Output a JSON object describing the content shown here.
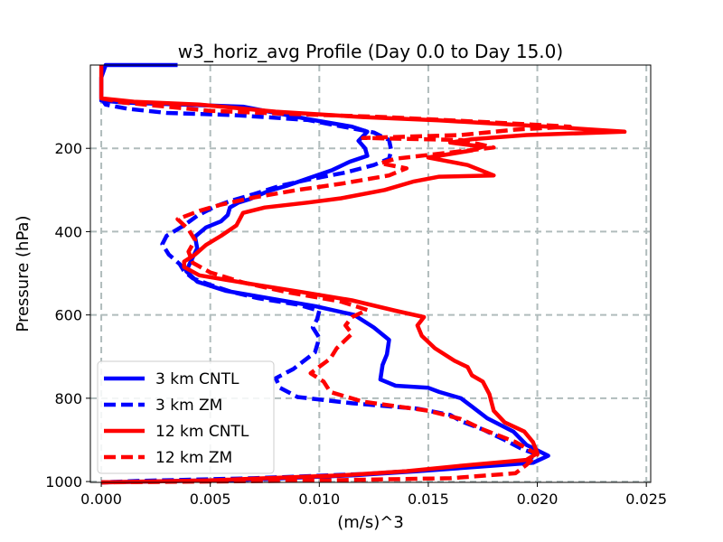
{
  "chart_data": {
    "type": "line",
    "title": "w3_horiz_avg Profile (Day 0.0 to Day 15.0)",
    "xlabel": "(m/s)^3",
    "ylabel": "Pressure (hPa)",
    "xlim": [
      -0.0005,
      0.0252
    ],
    "ylim": [
      1002,
      0
    ],
    "y_inverted": true,
    "grid": true,
    "x_ticks": [
      0.0,
      0.005,
      0.01,
      0.015,
      0.02,
      0.025
    ],
    "x_tick_labels": [
      "0.000",
      "0.005",
      "0.010",
      "0.015",
      "0.020",
      "0.025"
    ],
    "y_ticks": [
      200,
      400,
      600,
      800,
      1000
    ],
    "y_tick_labels": [
      "200",
      "400",
      "600",
      "800",
      "1000"
    ],
    "legend_location": "lower-left",
    "series": [
      {
        "name": "3 km CNTL",
        "color": "#0000ff",
        "dash": "solid",
        "points": [
          [
            0.0035,
            0
          ],
          [
            0.0025,
            0
          ],
          [
            0.0002,
            0
          ],
          [
            0.0,
            30
          ],
          [
            0.0,
            70
          ],
          [
            0.0,
            85
          ],
          [
            0.001,
            90
          ],
          [
            0.0037,
            95
          ],
          [
            0.0065,
            100
          ],
          [
            0.0075,
            110
          ],
          [
            0.0095,
            130
          ],
          [
            0.0115,
            148
          ],
          [
            0.0122,
            160
          ],
          [
            0.0118,
            182
          ],
          [
            0.0121,
            200
          ],
          [
            0.0122,
            218
          ],
          [
            0.0114,
            232
          ],
          [
            0.0106,
            252
          ],
          [
            0.0095,
            272
          ],
          [
            0.0085,
            290
          ],
          [
            0.0077,
            302
          ],
          [
            0.0068,
            322
          ],
          [
            0.0063,
            330
          ],
          [
            0.0059,
            342
          ],
          [
            0.0058,
            360
          ],
          [
            0.0055,
            375
          ],
          [
            0.0048,
            390
          ],
          [
            0.0043,
            412
          ],
          [
            0.0044,
            440
          ],
          [
            0.0041,
            472
          ],
          [
            0.0039,
            495
          ],
          [
            0.0044,
            520
          ],
          [
            0.0057,
            542
          ],
          [
            0.0077,
            560
          ],
          [
            0.0099,
            580
          ],
          [
            0.0116,
            600
          ],
          [
            0.0125,
            630
          ],
          [
            0.0132,
            660
          ],
          [
            0.0131,
            695
          ],
          [
            0.0129,
            720
          ],
          [
            0.0128,
            755
          ],
          [
            0.0135,
            770
          ],
          [
            0.015,
            775
          ],
          [
            0.0155,
            785
          ],
          [
            0.0165,
            800
          ],
          [
            0.017,
            820
          ],
          [
            0.0177,
            848
          ],
          [
            0.0189,
            880
          ],
          [
            0.0195,
            912
          ],
          [
            0.0205,
            938
          ],
          [
            0.0198,
            955
          ],
          [
            0.0172,
            965
          ],
          [
            0.0145,
            975
          ],
          [
            0.0115,
            985
          ],
          [
            0.007,
            995
          ],
          [
            0.002,
            1000
          ],
          [
            0.0,
            1002
          ]
        ]
      },
      {
        "name": "3 km ZM",
        "color": "#0000ff",
        "dash": "dashed",
        "points": [
          [
            0.0,
            80
          ],
          [
            0.0002,
            95
          ],
          [
            0.0012,
            105
          ],
          [
            0.003,
            115
          ],
          [
            0.006,
            120
          ],
          [
            0.0075,
            125
          ],
          [
            0.0095,
            132
          ],
          [
            0.0108,
            145
          ],
          [
            0.0125,
            162
          ],
          [
            0.0132,
            180
          ],
          [
            0.0133,
            205
          ],
          [
            0.0132,
            225
          ],
          [
            0.0125,
            240
          ],
          [
            0.0112,
            258
          ],
          [
            0.0095,
            275
          ],
          [
            0.0082,
            290
          ],
          [
            0.007,
            310
          ],
          [
            0.006,
            325
          ],
          [
            0.0052,
            340
          ],
          [
            0.0044,
            362
          ],
          [
            0.0038,
            385
          ],
          [
            0.003,
            410
          ],
          [
            0.0028,
            430
          ],
          [
            0.0031,
            455
          ],
          [
            0.0036,
            478
          ],
          [
            0.0038,
            495
          ],
          [
            0.0042,
            512
          ],
          [
            0.005,
            528
          ],
          [
            0.006,
            545
          ],
          [
            0.0072,
            560
          ],
          [
            0.009,
            575
          ],
          [
            0.01,
            590
          ],
          [
            0.0099,
            610
          ],
          [
            0.0097,
            630
          ],
          [
            0.01,
            655
          ],
          [
            0.0098,
            690
          ],
          [
            0.0088,
            730
          ],
          [
            0.008,
            752
          ],
          [
            0.0082,
            775
          ],
          [
            0.009,
            797
          ],
          [
            0.0115,
            812
          ],
          [
            0.0145,
            825
          ],
          [
            0.016,
            840
          ],
          [
            0.0165,
            855
          ],
          [
            0.0175,
            875
          ],
          [
            0.0185,
            900
          ],
          [
            0.0193,
            922
          ],
          [
            0.02,
            935
          ],
          [
            0.0195,
            950
          ],
          [
            0.0175,
            962
          ],
          [
            0.015,
            972
          ],
          [
            0.012,
            982
          ],
          [
            0.007,
            992
          ],
          [
            0.002,
            998
          ],
          [
            0.0,
            1002
          ]
        ]
      },
      {
        "name": "12 km CNTL",
        "color": "#ff0000",
        "dash": "solid",
        "points": [
          [
            0.0,
            0
          ],
          [
            0.0,
            30
          ],
          [
            0.0,
            70
          ],
          [
            0.0,
            80
          ],
          [
            0.0015,
            88
          ],
          [
            0.0045,
            95
          ],
          [
            0.008,
            112
          ],
          [
            0.012,
            125
          ],
          [
            0.0155,
            133
          ],
          [
            0.0205,
            148
          ],
          [
            0.024,
            160
          ],
          [
            0.0195,
            168
          ],
          [
            0.017,
            178
          ],
          [
            0.016,
            186
          ],
          [
            0.0175,
            196
          ],
          [
            0.017,
            205
          ],
          [
            0.015,
            222
          ],
          [
            0.0168,
            240
          ],
          [
            0.018,
            265
          ],
          [
            0.0155,
            268
          ],
          [
            0.0143,
            280
          ],
          [
            0.013,
            300
          ],
          [
            0.011,
            320
          ],
          [
            0.0095,
            330
          ],
          [
            0.0075,
            342
          ],
          [
            0.0065,
            355
          ],
          [
            0.0062,
            385
          ],
          [
            0.0055,
            410
          ],
          [
            0.0048,
            432
          ],
          [
            0.0043,
            455
          ],
          [
            0.0038,
            472
          ],
          [
            0.0038,
            485
          ],
          [
            0.0045,
            505
          ],
          [
            0.0068,
            525
          ],
          [
            0.0092,
            545
          ],
          [
            0.0115,
            565
          ],
          [
            0.0135,
            590
          ],
          [
            0.0148,
            605
          ],
          [
            0.0145,
            625
          ],
          [
            0.0147,
            650
          ],
          [
            0.0153,
            680
          ],
          [
            0.0162,
            710
          ],
          [
            0.0168,
            725
          ],
          [
            0.017,
            745
          ],
          [
            0.0175,
            760
          ],
          [
            0.0178,
            790
          ],
          [
            0.018,
            830
          ],
          [
            0.0185,
            858
          ],
          [
            0.0194,
            880
          ],
          [
            0.0198,
            905
          ],
          [
            0.02,
            932
          ],
          [
            0.0195,
            948
          ],
          [
            0.0165,
            962
          ],
          [
            0.014,
            975
          ],
          [
            0.011,
            985
          ],
          [
            0.005,
            997
          ],
          [
            0.0,
            1002
          ]
        ]
      },
      {
        "name": "12 km ZM",
        "color": "#ff0000",
        "dash": "dashed",
        "points": [
          [
            0.0,
            80
          ],
          [
            0.001,
            90
          ],
          [
            0.005,
            110
          ],
          [
            0.009,
            118
          ],
          [
            0.013,
            125
          ],
          [
            0.018,
            138
          ],
          [
            0.0215,
            148
          ],
          [
            0.019,
            155
          ],
          [
            0.0165,
            168
          ],
          [
            0.012,
            175
          ],
          [
            0.0165,
            180
          ],
          [
            0.018,
            198
          ],
          [
            0.016,
            210
          ],
          [
            0.0135,
            225
          ],
          [
            0.0128,
            236
          ],
          [
            0.014,
            248
          ],
          [
            0.0132,
            265
          ],
          [
            0.011,
            285
          ],
          [
            0.009,
            300
          ],
          [
            0.007,
            318
          ],
          [
            0.0055,
            335
          ],
          [
            0.0045,
            350
          ],
          [
            0.0035,
            370
          ],
          [
            0.004,
            395
          ],
          [
            0.0043,
            420
          ],
          [
            0.004,
            448
          ],
          [
            0.0042,
            475
          ],
          [
            0.005,
            498
          ],
          [
            0.0065,
            522
          ],
          [
            0.0085,
            545
          ],
          [
            0.011,
            568
          ],
          [
            0.0122,
            588
          ],
          [
            0.0115,
            605
          ],
          [
            0.0112,
            625
          ],
          [
            0.0115,
            645
          ],
          [
            0.0108,
            680
          ],
          [
            0.0105,
            705
          ],
          [
            0.0096,
            740
          ],
          [
            0.0102,
            760
          ],
          [
            0.0105,
            785
          ],
          [
            0.012,
            808
          ],
          [
            0.015,
            830
          ],
          [
            0.0165,
            850
          ],
          [
            0.0175,
            875
          ],
          [
            0.019,
            905
          ],
          [
            0.02,
            935
          ],
          [
            0.0195,
            960
          ],
          [
            0.019,
            980
          ],
          [
            0.016,
            992
          ],
          [
            0.009,
            998
          ],
          [
            0.0,
            1002
          ]
        ]
      }
    ]
  }
}
